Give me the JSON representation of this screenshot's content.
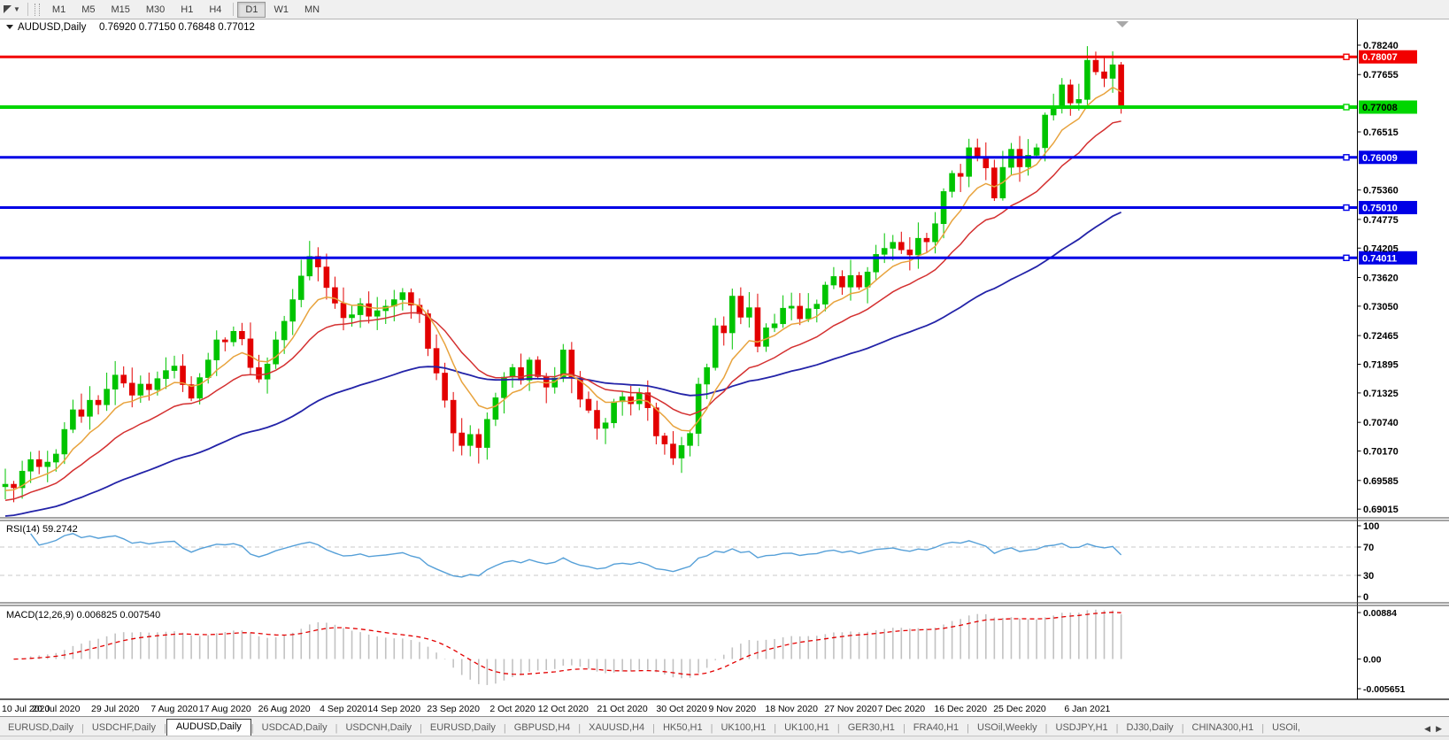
{
  "toolbar": {
    "timeframes": [
      "M1",
      "M5",
      "M15",
      "M30",
      "H1",
      "H4",
      "D1",
      "W1",
      "MN"
    ],
    "active_timeframe": "D1"
  },
  "chart": {
    "symbol": "AUDUSD,Daily",
    "ohlc": "0.76920 0.77150 0.76848 0.77012",
    "price_axis_ticks": [
      "0.78240",
      "0.77655",
      "0.76515",
      "0.75360",
      "0.74775",
      "0.74205",
      "0.73620",
      "0.73050",
      "0.72465",
      "0.71895",
      "0.71325",
      "0.70740",
      "0.70170",
      "0.69585",
      "0.69015"
    ],
    "horizontal_lines": [
      {
        "price": "0.78007",
        "color": "#f20000",
        "badge_text": "#ffffff",
        "thickness": 3
      },
      {
        "price": "0.77008",
        "color": "#00d600",
        "badge_text": "#000000",
        "thickness": 4
      },
      {
        "price": "0.76009",
        "color": "#0000e6",
        "badge_text": "#ffffff",
        "thickness": 3
      },
      {
        "price": "0.75010",
        "color": "#0000e6",
        "badge_text": "#ffffff",
        "thickness": 3
      },
      {
        "price": "0.74011",
        "color": "#0000e6",
        "badge_text": "#ffffff",
        "thickness": 3
      }
    ],
    "colors": {
      "bull": "#00c400",
      "bear": "#e30000",
      "ma_fast": "#e8a33d",
      "ma_mid": "#d43030",
      "ma_slow": "#2323a8",
      "rsi_line": "#56a0d8",
      "rsi_level": "#c8c8c8",
      "macd_hist": "#c2c2c2",
      "macd_signal": "#e30000"
    }
  },
  "chart_data": {
    "type": "candlestick",
    "symbol": "AUDUSD",
    "timeframe": "Daily",
    "title": "AUDUSD,Daily 0.76920 0.77150 0.76848 0.77012",
    "ylim": [
      0.69015,
      0.7824
    ],
    "x_labels": [
      {
        "label": "10 Jul 2020",
        "bar": 0
      },
      {
        "label": "20 Jul 2020",
        "bar": 6
      },
      {
        "label": "29 Jul 2020",
        "bar": 13
      },
      {
        "label": "7 Aug 2020",
        "bar": 20
      },
      {
        "label": "17 Aug 2020",
        "bar": 26
      },
      {
        "label": "26 Aug 2020",
        "bar": 33
      },
      {
        "label": "4 Sep 2020",
        "bar": 40
      },
      {
        "label": "14 Sep 2020",
        "bar": 46
      },
      {
        "label": "23 Sep 2020",
        "bar": 53
      },
      {
        "label": "2 Oct 2020",
        "bar": 60
      },
      {
        "label": "12 Oct 2020",
        "bar": 66
      },
      {
        "label": "21 Oct 2020",
        "bar": 73
      },
      {
        "label": "30 Oct 2020",
        "bar": 80
      },
      {
        "label": "9 Nov 2020",
        "bar": 86
      },
      {
        "label": "18 Nov 2020",
        "bar": 93
      },
      {
        "label": "27 Nov 2020",
        "bar": 100
      },
      {
        "label": "7 Dec 2020",
        "bar": 106
      },
      {
        "label": "16 Dec 2020",
        "bar": 113
      },
      {
        "label": "25 Dec 2020",
        "bar": 120
      },
      {
        "label": "6 Jan 2021",
        "bar": 128
      }
    ],
    "closes": [
      0.6951,
      0.6944,
      0.6977,
      0.7,
      0.6986,
      0.6995,
      0.7011,
      0.706,
      0.7099,
      0.7086,
      0.7118,
      0.7109,
      0.714,
      0.7168,
      0.7152,
      0.7128,
      0.715,
      0.7139,
      0.7161,
      0.7177,
      0.7186,
      0.7149,
      0.7122,
      0.7163,
      0.7198,
      0.7238,
      0.7234,
      0.7255,
      0.724,
      0.7183,
      0.716,
      0.719,
      0.7238,
      0.7275,
      0.7318,
      0.7365,
      0.7404,
      0.7383,
      0.7342,
      0.7311,
      0.7282,
      0.7288,
      0.731,
      0.7285,
      0.7296,
      0.7305,
      0.7318,
      0.7332,
      0.7307,
      0.729,
      0.7221,
      0.7172,
      0.7118,
      0.7053,
      0.7028,
      0.705,
      0.7024,
      0.708,
      0.7123,
      0.7164,
      0.7183,
      0.7158,
      0.7198,
      0.7165,
      0.7144,
      0.7162,
      0.7218,
      0.7162,
      0.712,
      0.7098,
      0.7062,
      0.7073,
      0.7115,
      0.7125,
      0.7111,
      0.7133,
      0.7103,
      0.7047,
      0.7031,
      0.7003,
      0.7028,
      0.7052,
      0.715,
      0.7183,
      0.7266,
      0.7252,
      0.7325,
      0.7283,
      0.7302,
      0.7225,
      0.7262,
      0.727,
      0.7301,
      0.7305,
      0.728,
      0.73,
      0.7309,
      0.7347,
      0.7364,
      0.7343,
      0.7366,
      0.7343,
      0.7373,
      0.7408,
      0.742,
      0.7432,
      0.7417,
      0.7407,
      0.744,
      0.7433,
      0.7469,
      0.7533,
      0.7569,
      0.7563,
      0.762,
      0.76,
      0.758,
      0.752,
      0.7581,
      0.7617,
      0.7582,
      0.7605,
      0.762,
      0.7685,
      0.7702,
      0.7745,
      0.7709,
      0.7716,
      0.7794,
      0.7771,
      0.7758,
      0.7785,
      0.7701
    ],
    "wick_overrides": {
      "36": {
        "high": 0.7414
      },
      "53": {
        "low": 0.7016
      },
      "79": {
        "low": 0.6993
      },
      "128": {
        "high": 0.7822
      },
      "129": {
        "high": 0.7808
      }
    },
    "indicators": [
      {
        "name": "MA",
        "period": 8,
        "style": "ma_fast"
      },
      {
        "name": "MA",
        "period": 18,
        "style": "ma_mid"
      },
      {
        "name": "MA",
        "period": 55,
        "style": "ma_slow"
      }
    ]
  },
  "rsi": {
    "label": "RSI(14)",
    "value": "59.2742",
    "period": 14,
    "levels": [
      70,
      30
    ],
    "axis_ticks": [
      "100",
      "70",
      "30",
      "0"
    ]
  },
  "macd": {
    "label": "MACD(12,26,9)",
    "value": "0.006825",
    "signal_value": "0.007540",
    "fast": 12,
    "slow": 26,
    "signal": 9,
    "axis_ticks": [
      "0.00884",
      "0.00",
      "-0.005651"
    ]
  },
  "tabs": {
    "items": [
      "EURUSD,Daily",
      "USDCHF,Daily",
      "AUDUSD,Daily",
      "USDCAD,Daily",
      "USDCNH,Daily",
      "EURUSD,Daily",
      "GBPUSD,H4",
      "XAUUSD,H4",
      "HK50,H1",
      "UK100,H1",
      "UK100,H1",
      "GER30,H1",
      "FRA40,H1",
      "USOil,Weekly",
      "USDJPY,H1",
      "DJ30,Daily",
      "CHINA300,H1",
      "USOil,"
    ],
    "active_index": 2
  }
}
